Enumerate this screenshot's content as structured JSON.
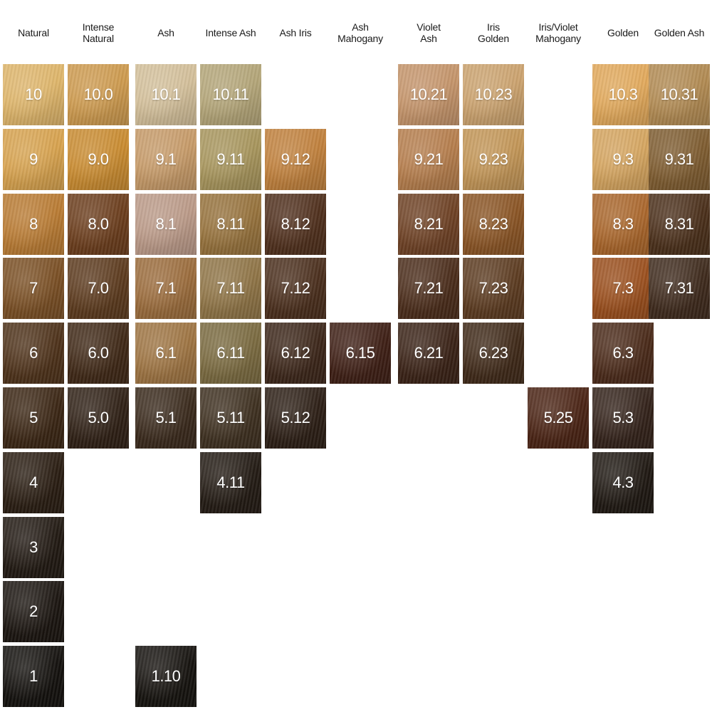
{
  "columns": [
    {
      "label": "Natural"
    },
    {
      "label": "Intense\nNatural"
    },
    {
      "label": "Ash"
    },
    {
      "label": "Intense Ash"
    },
    {
      "label": "Ash Iris"
    },
    {
      "label": "Ash\nMahogany"
    },
    {
      "label": "Violet\nAsh"
    },
    {
      "label": "Iris\nGolden"
    },
    {
      "label": "Iris/Violet\nMahogany"
    },
    {
      "label": "Golden"
    },
    {
      "label": "Golden Ash"
    }
  ],
  "swatches": [
    {
      "code": "10",
      "col": 0,
      "level": 10,
      "color": "#deb56a"
    },
    {
      "code": "9",
      "col": 0,
      "level": 9,
      "color": "#d7a24e"
    },
    {
      "code": "8",
      "col": 0,
      "level": 8,
      "color": "#b97b33"
    },
    {
      "code": "7",
      "col": 0,
      "level": 7,
      "color": "#7a4f24"
    },
    {
      "code": "6",
      "col": 0,
      "level": 6,
      "color": "#4e321a"
    },
    {
      "code": "5",
      "col": 0,
      "level": 5,
      "color": "#3b2614"
    },
    {
      "code": "4",
      "col": 0,
      "level": 4,
      "color": "#2a1d12"
    },
    {
      "code": "3",
      "col": 0,
      "level": 3,
      "color": "#211912"
    },
    {
      "code": "2",
      "col": 0,
      "level": 2,
      "color": "#1b1510"
    },
    {
      "code": "1",
      "col": 0,
      "level": 1,
      "color": "#14110e"
    },
    {
      "code": "10.0",
      "col": 1,
      "level": 10,
      "color": "#cd9a4e"
    },
    {
      "code": "9.0",
      "col": 1,
      "level": 9,
      "color": "#c98b30"
    },
    {
      "code": "8.0",
      "col": 1,
      "level": 8,
      "color": "#6b3d1c"
    },
    {
      "code": "7.0",
      "col": 1,
      "level": 7,
      "color": "#5c3a1d"
    },
    {
      "code": "6.0",
      "col": 1,
      "level": 6,
      "color": "#3f2816"
    },
    {
      "code": "5.0",
      "col": 1,
      "level": 5,
      "color": "#2f2015"
    },
    {
      "code": "10.1",
      "col": 2,
      "level": 10,
      "color": "#d3bf9a"
    },
    {
      "code": "9.1",
      "col": 2,
      "level": 9,
      "color": "#c69a68"
    },
    {
      "code": "8.1",
      "col": 2,
      "level": 8,
      "color": "#bb9a88"
    },
    {
      "code": "7.1",
      "col": 2,
      "level": 7,
      "color": "#9b6c3c"
    },
    {
      "code": "6.1",
      "col": 2,
      "level": 6,
      "color": "#9e7442"
    },
    {
      "code": "5.1",
      "col": 2,
      "level": 5,
      "color": "#3a2a1c"
    },
    {
      "code": "1.10",
      "col": 2,
      "level": 1,
      "color": "#16130f"
    },
    {
      "code": "10.11",
      "col": 3,
      "level": 10,
      "color": "#b3a578"
    },
    {
      "code": "9.11",
      "col": 3,
      "level": 9,
      "color": "#a7955c"
    },
    {
      "code": "8.11",
      "col": 3,
      "level": 8,
      "color": "#96723c"
    },
    {
      "code": "7.11",
      "col": 3,
      "level": 7,
      "color": "#8f7446"
    },
    {
      "code": "6.11",
      "col": 3,
      "level": 6,
      "color": "#7a6a40"
    },
    {
      "code": "5.11",
      "col": 3,
      "level": 5,
      "color": "#3e3020"
    },
    {
      "code": "4.11",
      "col": 3,
      "level": 4,
      "color": "#231b14"
    },
    {
      "code": "9.12",
      "col": 4,
      "level": 9,
      "color": "#c0803c"
    },
    {
      "code": "8.12",
      "col": 4,
      "level": 8,
      "color": "#4f2f1c"
    },
    {
      "code": "7.12",
      "col": 4,
      "level": 7,
      "color": "#4a2e1c"
    },
    {
      "code": "6.12",
      "col": 4,
      "level": 6,
      "color": "#3c2619"
    },
    {
      "code": "5.12",
      "col": 4,
      "level": 5,
      "color": "#2c1e15"
    },
    {
      "code": "6.15",
      "col": 5,
      "level": 6,
      "color": "#3e1f15"
    },
    {
      "code": "10.21",
      "col": 6,
      "level": 10,
      "color": "#c4946a"
    },
    {
      "code": "9.21",
      "col": 6,
      "level": 9,
      "color": "#b57d4c"
    },
    {
      "code": "8.21",
      "col": 6,
      "level": 8,
      "color": "#6e4124"
    },
    {
      "code": "7.21",
      "col": 6,
      "level": 7,
      "color": "#4a2c1a"
    },
    {
      "code": "6.21",
      "col": 6,
      "level": 6,
      "color": "#3a2216"
    },
    {
      "code": "10.23",
      "col": 7,
      "level": 10,
      "color": "#cba26e"
    },
    {
      "code": "9.23",
      "col": 7,
      "level": 9,
      "color": "#c29556"
    },
    {
      "code": "8.23",
      "col": 7,
      "level": 8,
      "color": "#8a5424"
    },
    {
      "code": "7.23",
      "col": 7,
      "level": 7,
      "color": "#5c3b20"
    },
    {
      "code": "6.23",
      "col": 7,
      "level": 6,
      "color": "#3f2918"
    },
    {
      "code": "5.25",
      "col": 8,
      "level": 5,
      "color": "#4a2314"
    },
    {
      "code": "10.3",
      "col": 9,
      "level": 10,
      "color": "#e1a85a"
    },
    {
      "code": "9.3",
      "col": 9,
      "level": 9,
      "color": "#d4a45e"
    },
    {
      "code": "8.3",
      "col": 9,
      "level": 8,
      "color": "#a9652a"
    },
    {
      "code": "7.3",
      "col": 9,
      "level": 7,
      "color": "#9a4e1c"
    },
    {
      "code": "6.3",
      "col": 9,
      "level": 6,
      "color": "#4a2a19"
    },
    {
      "code": "5.3",
      "col": 9,
      "level": 5,
      "color": "#33221a"
    },
    {
      "code": "4.3",
      "col": 9,
      "level": 4,
      "color": "#1f1812"
    },
    {
      "code": "10.31",
      "col": 10,
      "level": 10,
      "color": "#b18a52"
    },
    {
      "code": "9.31",
      "col": 10,
      "level": 9,
      "color": "#7e5c30"
    },
    {
      "code": "8.31",
      "col": 10,
      "level": 8,
      "color": "#4a2f1a"
    },
    {
      "code": "7.31",
      "col": 10,
      "level": 7,
      "color": "#3e2a1c"
    }
  ]
}
